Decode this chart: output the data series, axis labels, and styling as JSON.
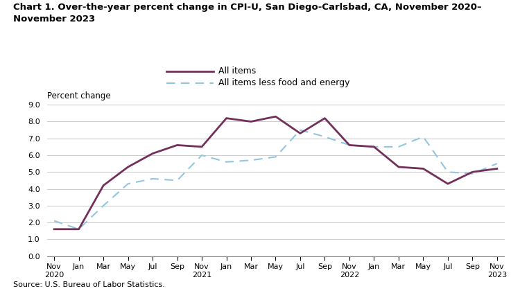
{
  "title": "Chart 1. Over-the-year percent change in CPI-U, San Diego-Carlsbad, CA, November 2020–\nNovember 2023",
  "ylabel": "Percent change",
  "source": "Source: U.S. Bureau of Labor Statistics.",
  "ylim": [
    0.0,
    9.0
  ],
  "yticks": [
    0.0,
    1.0,
    2.0,
    3.0,
    4.0,
    5.0,
    6.0,
    7.0,
    8.0,
    9.0
  ],
  "x_labels": [
    "Nov\n2020",
    "Jan",
    "Mar",
    "May",
    "Jul",
    "Sep",
    "Nov\n2021",
    "Jan",
    "Mar",
    "May",
    "Jul",
    "Sep",
    "Nov\n2022",
    "Jan",
    "Mar",
    "May",
    "Jul",
    "Sep",
    "Nov\n2023"
  ],
  "all_items": [
    1.6,
    1.6,
    4.2,
    5.3,
    6.1,
    6.6,
    6.5,
    8.2,
    8.0,
    8.3,
    7.3,
    8.2,
    6.6,
    6.5,
    5.3,
    5.2,
    4.3,
    5.0,
    5.2
  ],
  "all_items_less": [
    2.1,
    1.6,
    3.0,
    4.3,
    4.6,
    4.5,
    6.0,
    5.6,
    5.7,
    5.9,
    7.5,
    7.1,
    6.6,
    6.5,
    6.5,
    7.1,
    5.0,
    4.9,
    5.5
  ],
  "all_items_color": "#722F5A",
  "all_items_less_color": "#92C5DE",
  "all_items_linewidth": 2.0,
  "all_items_less_linewidth": 1.5,
  "legend_all_items": "All items",
  "legend_all_items_less": "All items less food and energy",
  "background_color": "#ffffff",
  "grid_color": "#cccccc"
}
